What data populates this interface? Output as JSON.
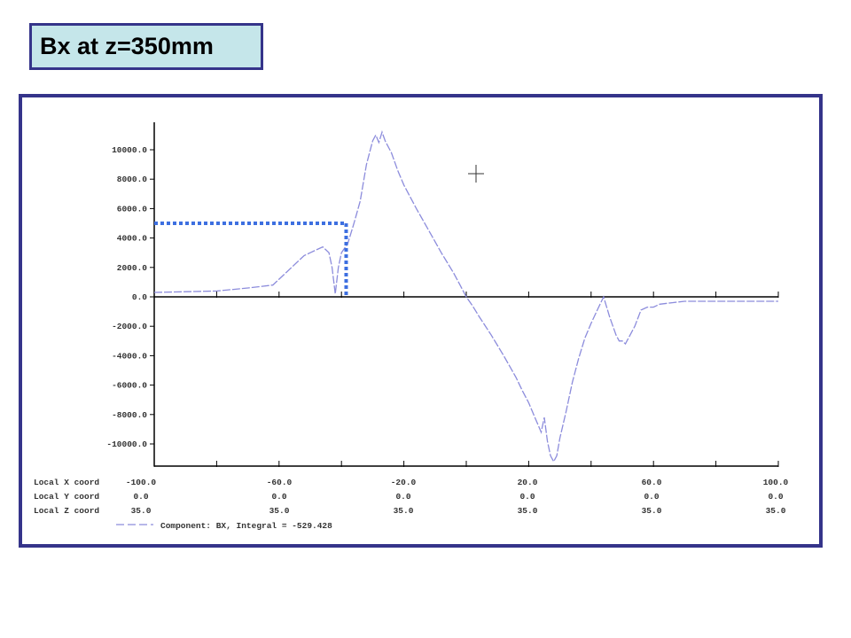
{
  "slide": {
    "title": "Bx at z=350mm"
  },
  "colors": {
    "frame": "#35348a",
    "title_bg": "#c5e6ea",
    "curve": "#8c8cdc",
    "marker": "#3d6fe0",
    "axes": "#000000"
  },
  "chart_data": {
    "type": "line",
    "title": "",
    "xlabel": "",
    "ylabel": "",
    "xlim": [
      -100,
      100
    ],
    "ylim": [
      -11500,
      11500
    ],
    "y_ticks": [
      10000,
      8000,
      6000,
      4000,
      2000,
      0,
      -2000,
      -4000,
      -6000,
      -8000,
      -10000
    ],
    "y_tick_labels": [
      "10000.0",
      "8000.0",
      "6000.0",
      "4000.0",
      "2000.0",
      "0.0",
      "-2000.0",
      "-4000.0",
      "-6000.0",
      "-8000.0",
      "-10000.0"
    ],
    "x_ticks": [
      -100,
      -80,
      -60,
      -40,
      -20,
      0,
      20,
      40,
      60,
      80,
      100
    ],
    "coord_table": {
      "rows": [
        {
          "label": "Local X coord",
          "values": [
            "-100.0",
            "-60.0",
            "-20.0",
            "20.0",
            "60.0",
            "100.0"
          ]
        },
        {
          "label": "Local Y coord",
          "values": [
            "0.0",
            "0.0",
            "0.0",
            "0.0",
            "0.0",
            "0.0"
          ]
        },
        {
          "label": "Local Z coord",
          "values": [
            "35.0",
            "35.0",
            "35.0",
            "35.0",
            "35.0",
            "35.0"
          ]
        }
      ]
    },
    "legend_text": "Component:  BX, Integral = -529.428",
    "marker_point": {
      "x": -38.5,
      "y": 5000
    },
    "series": [
      {
        "name": "BX",
        "x": [
          -100,
          -90,
          -80,
          -70,
          -62,
          -56,
          -52,
          -50,
          -48,
          -46,
          -44,
          -43,
          -42,
          -41,
          -40,
          -38,
          -36,
          -34,
          -32,
          -30,
          -29,
          -28,
          -27,
          -26,
          -24,
          -22,
          -20,
          -16,
          -12,
          -8,
          -4,
          -2,
          0,
          2,
          4,
          8,
          12,
          16,
          18,
          20,
          22,
          24,
          25,
          26,
          27,
          28,
          29,
          30,
          32,
          34,
          36,
          38,
          40,
          42,
          44,
          46,
          48,
          49,
          50,
          51,
          52,
          54,
          56,
          58,
          60,
          62,
          66,
          70,
          80,
          90,
          100
        ],
        "y": [
          300,
          350,
          400,
          600,
          800,
          2000,
          2800,
          3000,
          3200,
          3400,
          3000,
          2000,
          200,
          2000,
          3000,
          3600,
          5000,
          6500,
          9000,
          10600,
          11000,
          10500,
          11200,
          10600,
          9800,
          8600,
          7600,
          6000,
          4500,
          3000,
          1600,
          800,
          0,
          -600,
          -1300,
          -2600,
          -4000,
          -5500,
          -6400,
          -7200,
          -8200,
          -9200,
          -8200,
          -9800,
          -10800,
          -11200,
          -10800,
          -9600,
          -7800,
          -5800,
          -4200,
          -2800,
          -1800,
          -900,
          0,
          -1400,
          -2600,
          -3000,
          -3000,
          -3200,
          -2800,
          -2000,
          -900,
          -700,
          -700,
          -500,
          -400,
          -300,
          -300,
          -300,
          -300
        ]
      }
    ]
  }
}
